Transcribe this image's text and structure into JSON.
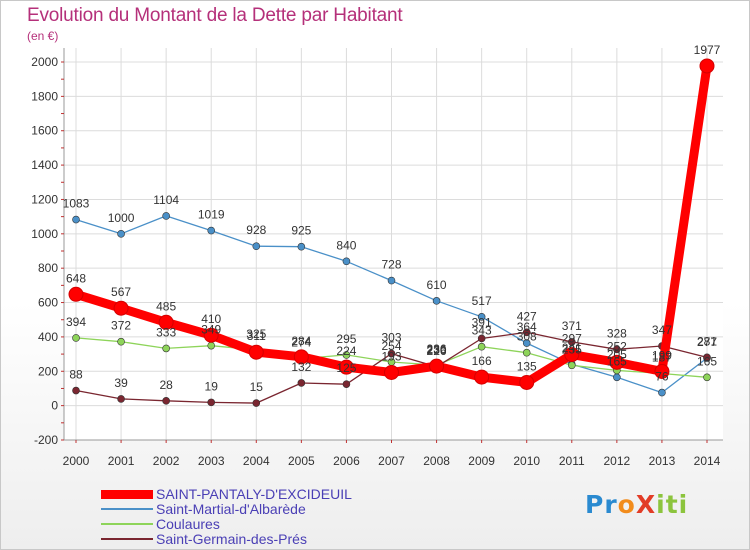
{
  "title": "Evolution du Montant de la Dette par Habitant",
  "unit": "(en €)",
  "logo": {
    "text": "ProXiti",
    "parts": [
      {
        "t": "Pr",
        "c": "#2a8ad0"
      },
      {
        "t": "o",
        "c": "#f28c1c"
      },
      {
        "t": "X",
        "c": "#e23c26"
      },
      {
        "t": "iti",
        "c": "#8cc43d"
      }
    ]
  },
  "chart_data": {
    "type": "line",
    "title": "Evolution du Montant de la Dette par Habitant",
    "ylabel": "(en €)",
    "xlabel": "",
    "x": [
      2000,
      2001,
      2002,
      2003,
      2004,
      2005,
      2006,
      2007,
      2008,
      2009,
      2010,
      2011,
      2012,
      2013,
      2014
    ],
    "ylim": [
      -200,
      2000
    ],
    "yticks": [
      -200,
      0,
      200,
      400,
      600,
      800,
      1000,
      1200,
      1400,
      1600,
      1800,
      2000
    ],
    "grid": true,
    "legend_position": "bottom-left",
    "series": [
      {
        "name": "SAINT-PANTALY-D'EXCIDEUIL",
        "color": "#ff0000",
        "thick": true,
        "values": [
          648,
          567,
          485,
          410,
          311,
          284,
          224,
          193,
          230,
          166,
          135,
          297,
          252,
          199,
          1977
        ],
        "labels": [
          "648",
          "567",
          "485",
          "410",
          "311",
          "284",
          "224",
          "193",
          "230",
          "166",
          "135",
          "297",
          "252",
          "199",
          "1977"
        ]
      },
      {
        "name": "Saint-Martial-d'Albarède",
        "color": "#4a90c8",
        "values": [
          1083,
          1000,
          1104,
          1019,
          928,
          925,
          840,
          728,
          610,
          517,
          364,
          241,
          165,
          76,
          277
        ],
        "labels": [
          "1083",
          "1000",
          "1104",
          "1019",
          "928",
          "925",
          "840",
          "728",
          "610",
          "517",
          "364",
          "241",
          "165",
          "76",
          "277"
        ]
      },
      {
        "name": "Coulaures",
        "color": "#8ed45a",
        "values": [
          394,
          372,
          333,
          349,
          325,
          274,
          295,
          254,
          236,
          343,
          308,
          235,
          205,
          187,
          165
        ],
        "labels": [
          "394",
          "372",
          "333",
          "349",
          "325",
          "274",
          "295",
          "254",
          "236",
          "343",
          "308",
          "235",
          "205",
          "187",
          "165"
        ]
      },
      {
        "name": "Saint-Germain-des-Prés",
        "color": "#7a2630",
        "values": [
          88,
          39,
          28,
          19,
          15,
          132,
          125,
          303,
          226,
          391,
          427,
          371,
          328,
          347,
          281
        ],
        "labels": [
          "88",
          "39",
          "28",
          "19",
          "15",
          "132",
          "125",
          "303",
          "226",
          "391",
          "427",
          "371",
          "328",
          "347",
          "281"
        ]
      }
    ]
  }
}
